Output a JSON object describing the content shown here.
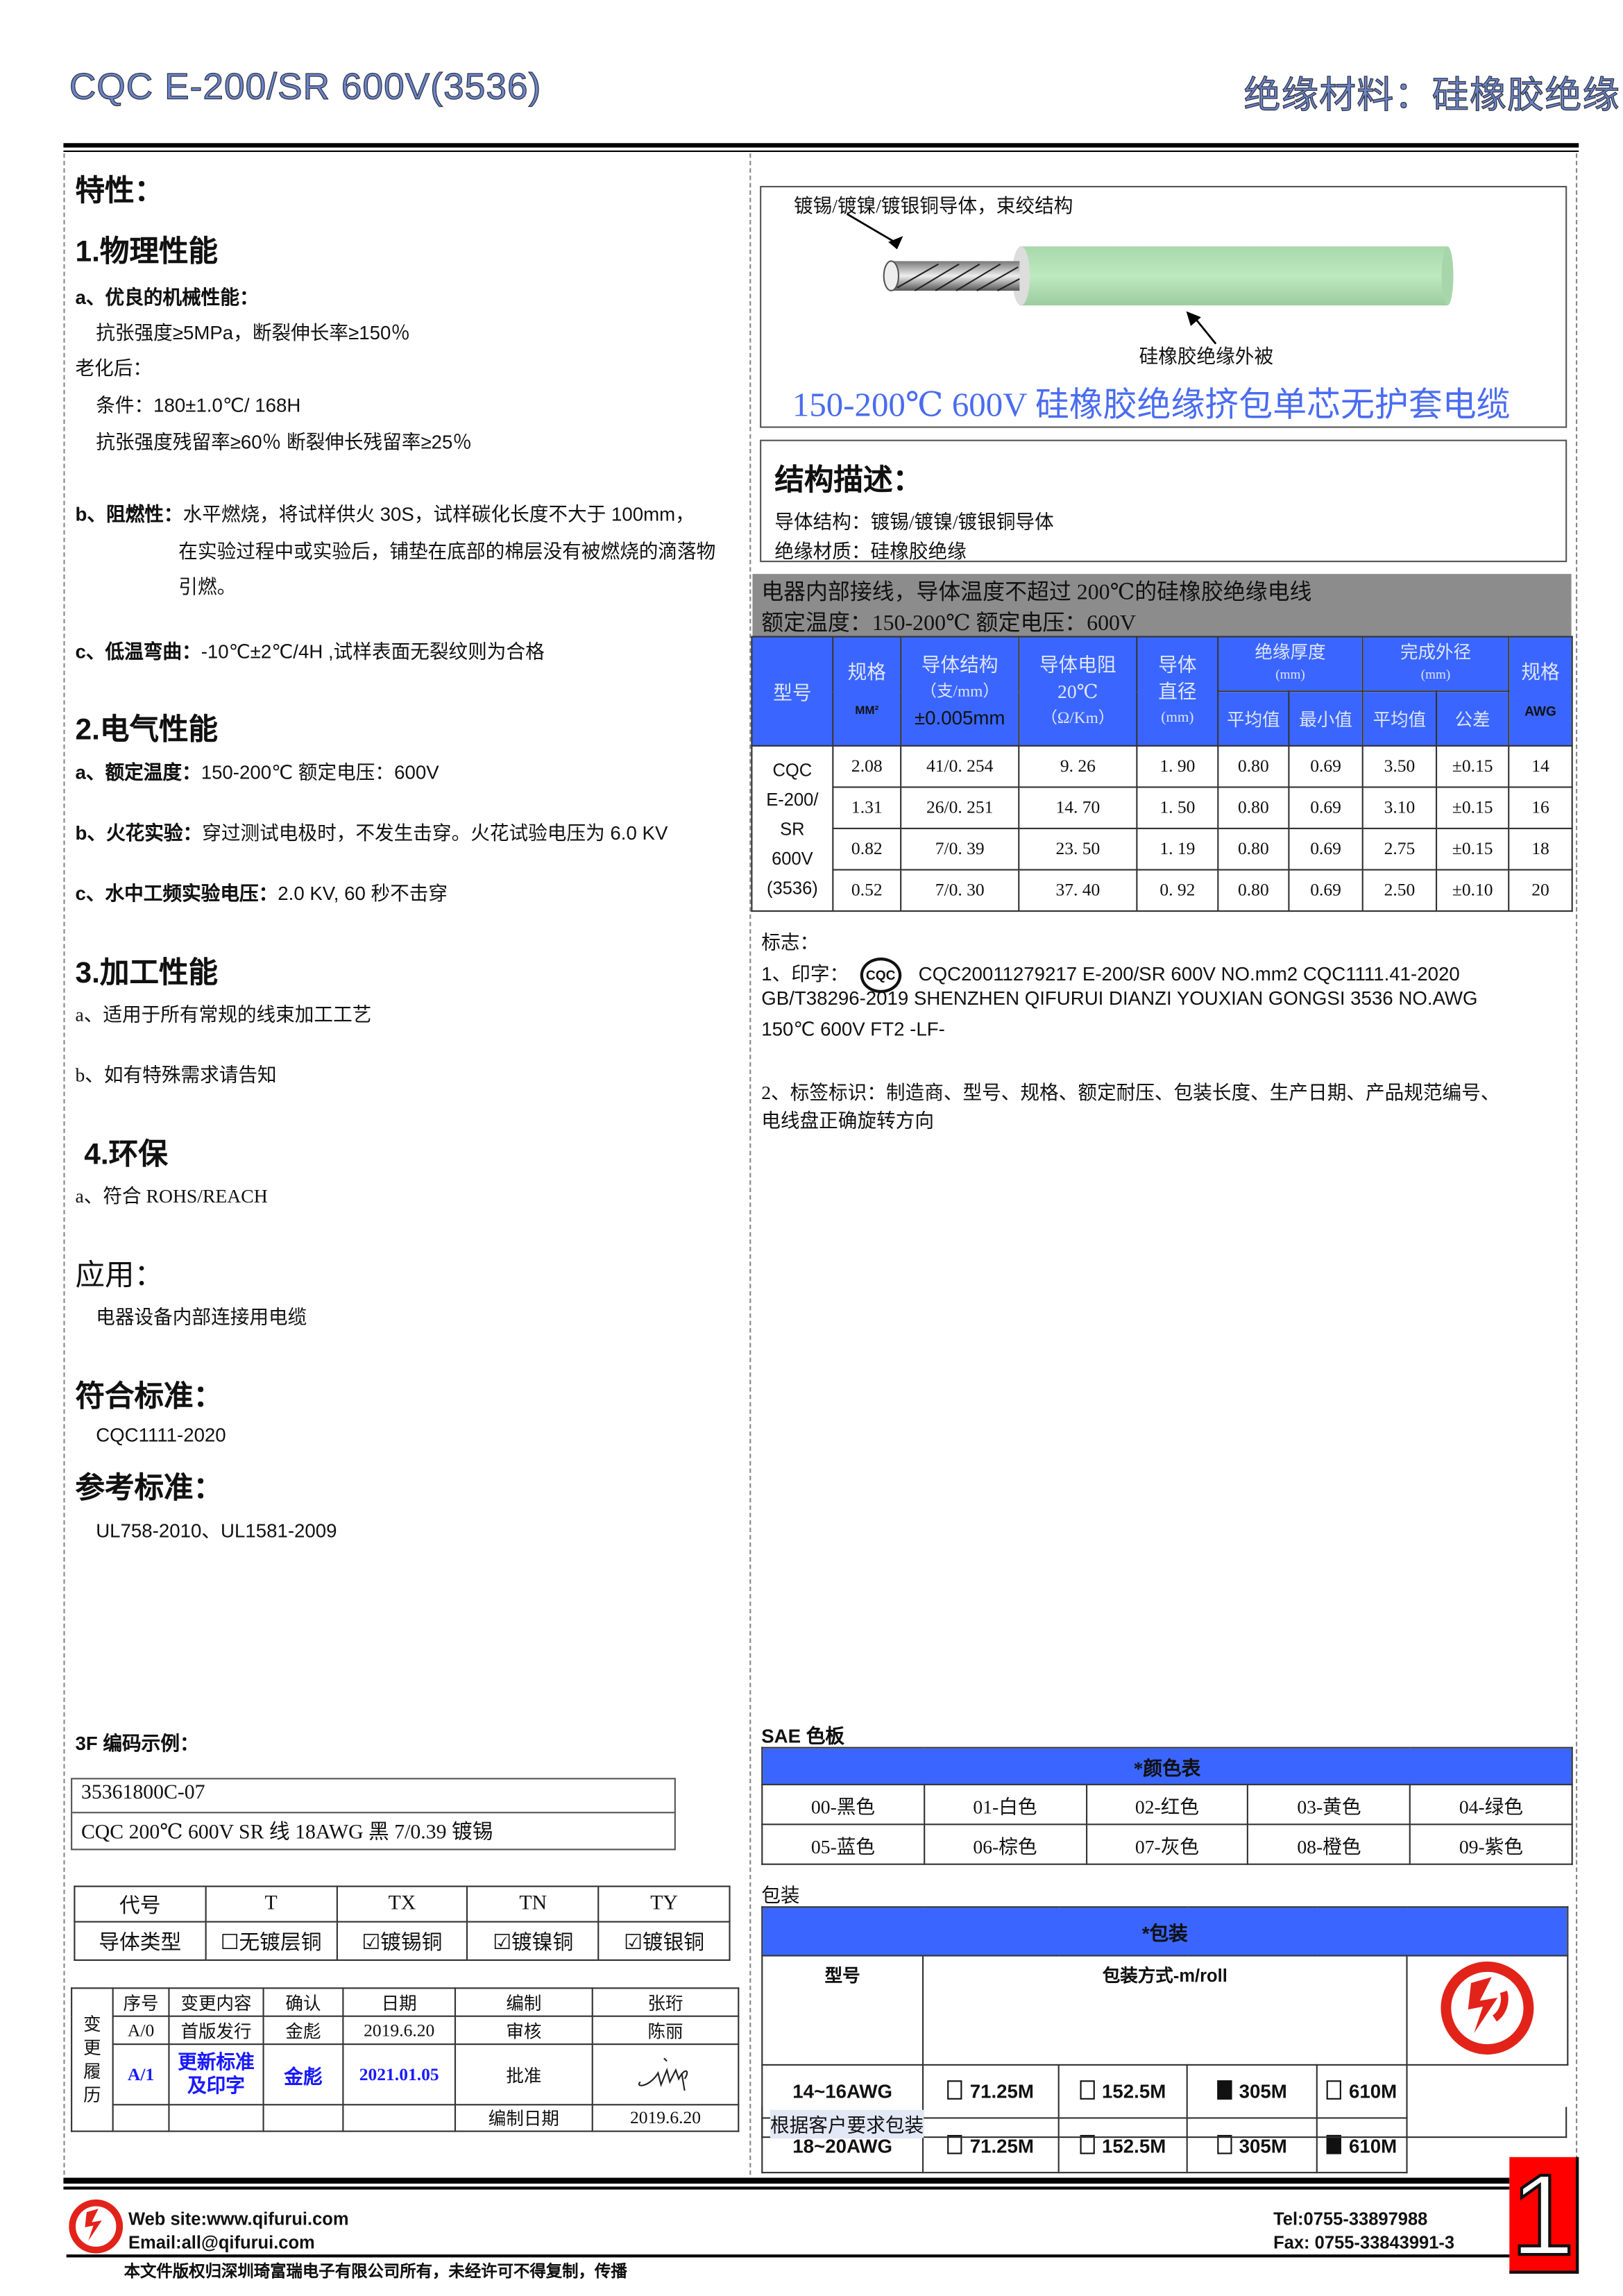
{
  "header": {
    "title": "CQC E-200/SR 600V(3536)",
    "category": "绝缘材料：硅橡胶绝缘"
  },
  "left": {
    "features_heading": "特性：",
    "physical": {
      "heading": "1.物理性能",
      "a_label": "a、优良的机械性能：",
      "a_line1": "抗张强度≥5MPa，断裂伸长率≥150％",
      "aging_label": "老化后：",
      "aging_cond": "条件：180±1.0℃/ 168H",
      "aging_result": "抗张强度残留率≥60％  断裂伸长残留率≥25％",
      "b_label": "b、阻燃性：",
      "b_line1": "水平燃烧，将试样供火 30S，试样碳化长度不大于 100mm，",
      "b_line2": "在实验过程中或实验后，铺垫在底部的棉层没有被燃烧的滴落物",
      "b_line3": "引燃。",
      "c_label": "c、低温弯曲：",
      "c_text": "-10℃±2℃/4H ,试样表面无裂纹则为合格"
    },
    "electrical": {
      "heading": "2.电气性能",
      "a_label": "a、额定温度：",
      "a_text": "150-200℃    额定电压：600V",
      "b_label": "b、火花实验：",
      "b_text": "穿过测试电极时，不发生击穿。火花试验电压为 6.0 KV",
      "c_label": "c、水中工频实验电压：",
      "c_text": "2.0 KV, 60 秒不击穿"
    },
    "processing": {
      "heading": "3.加工性能",
      "a": "a、适用于所有常规的线束加工工艺",
      "b": "b、如有特殊需求请告知"
    },
    "environment": {
      "heading": "4.环保",
      "a": "a、符合 ROHS/REACH"
    },
    "application": {
      "heading": "应用：",
      "text": "电器设备内部连接用电缆"
    },
    "standard": {
      "heading": "符合标准：",
      "text": "CQC1111-2020"
    },
    "reference": {
      "heading": "参考标准：",
      "text": "UL758-2010、UL1581-2009"
    },
    "code_example": {
      "heading": "3F 编码示例：",
      "code": "35361800C-07",
      "description": "CQC 200℃  600V SR 线  18AWG  黑  7/0.39 镀锡"
    },
    "code_table": {
      "header": [
        "代号",
        "T",
        "TX",
        "TN",
        "TY"
      ],
      "row": [
        "导体类型",
        "☐无镀层铜",
        "☑镀锡铜",
        "☑镀镍铜",
        "☑镀银铜"
      ]
    },
    "history": {
      "side_label": "变更履历",
      "header": [
        "序号",
        "变更内容",
        "确认",
        "日期",
        "编制",
        "张珩"
      ],
      "row1": [
        "A/0",
        "首版发行",
        "金彪",
        "2019.6.20",
        "审核",
        "陈丽"
      ],
      "row2": [
        "A/1",
        "更新标准及印字",
        "金彪",
        "2021.01.05",
        "批准"
      ],
      "row3": [
        "编制日期",
        "2019.6.20"
      ],
      "highlight_color": "#1a1aff"
    }
  },
  "right": {
    "image": {
      "conductor_label": "镀锡/镀镍/镀银铜导体，束绞结构",
      "insulation_label": "硅橡胶绝缘外被",
      "caption": "150-200℃  600V 硅橡胶绝缘挤包单芯无护套电缆",
      "insulation_color": "#b8e8bb"
    },
    "structure": {
      "heading": "结构描述：",
      "conductor": "导体结构：镀锡/镀镍/镀银铜导体",
      "insulation": "绝缘材质：硅橡胶绝缘"
    },
    "banner": {
      "line1": "电器内部接线，导体温度不超过 200℃的硅橡胶绝缘电线",
      "line2": "额定温度：150-200℃  额定电压：600V"
    },
    "spec_table": {
      "header": {
        "model": "型号",
        "size": "规格",
        "size_unit": "MM²",
        "structure": "导体结构",
        "structure_unit": "（支/mm）",
        "structure_tol": "±0.005mm",
        "resistance": "导体电阻",
        "resistance_temp": "20℃",
        "resistance_unit": "（Ω/Km）",
        "diameter": "导体",
        "diameter2": "直径",
        "diameter_unit": "(mm)",
        "ins_thickness": "绝缘厚度",
        "ins_unit": "(mm)",
        "avg": "平均值",
        "min": "最小值",
        "od": "完成外径",
        "od_unit": "(mm)",
        "od_avg": "平均值",
        "tol": "公差",
        "awg": "规格",
        "awg_unit": "AWG"
      },
      "model": [
        "CQC",
        "E-200/",
        "SR",
        "600V",
        "(3536)"
      ],
      "rows": [
        [
          "2.08",
          "41/0. 254",
          "9. 26",
          "1. 90",
          "0.80",
          "0.69",
          "3.50",
          "±0.15",
          "14"
        ],
        [
          "1.31",
          "26/0. 251",
          "14. 70",
          "1. 50",
          "0.80",
          "0.69",
          "3.10",
          "±0.15",
          "16"
        ],
        [
          "0.82",
          "7/0. 39",
          "23. 50",
          "1. 19",
          "0.80",
          "0.69",
          "2.75",
          "±0.15",
          "18"
        ],
        [
          "0.52",
          "7/0. 30",
          "37. 40",
          "0. 92",
          "0.80",
          "0.69",
          "2.50",
          "±0.10",
          "20"
        ]
      ]
    },
    "marking": {
      "heading": "标志：",
      "l1_prefix": "1、印字：",
      "cqc_logo": "CQC",
      "l1": "CQC20011279217    E-200/SR    600V    NO.mm2    CQC1111.41-2020",
      "l2": "GB/T38296-2019 SHENZHEN QIFURUI DIANZI YOUXIAN GONGSI      3536 NO.AWG",
      "l3": "150℃  600V FT2 -LF-",
      "l4": "2、标签标识：制造商、型号、规格、额定耐压、包装长度、生产日期、产品规范编号、",
      "l5": "电线盘正确旋转方向"
    },
    "sae": {
      "heading": "SAE 色板",
      "title": "*颜色表",
      "colors": [
        [
          "00-黑色",
          "01-白色",
          "02-红色",
          "03-黄色",
          "04-绿色"
        ],
        [
          "05-蓝色",
          "06-棕色",
          "07-灰色",
          "08-橙色",
          "09-紫色"
        ]
      ]
    },
    "packing": {
      "heading": "包装",
      "title": "*包装",
      "model_header": "型号",
      "method_header": "包装方式-m/roll",
      "rows": [
        {
          "model": "14~16AWG",
          "options": [
            {
              "label": "71.25M",
              "checked": false
            },
            {
              "label": "152.5M",
              "checked": false
            },
            {
              "label": "305M",
              "checked": true
            },
            {
              "label": "610M",
              "checked": false
            }
          ]
        },
        {
          "model": "18~20AWG",
          "options": [
            {
              "label": "71.25M",
              "checked": false
            },
            {
              "label": "152.5M",
              "checked": false
            },
            {
              "label": "305M",
              "checked": false
            },
            {
              "label": "610M",
              "checked": true
            }
          ]
        }
      ],
      "note": "根据客户要求包装"
    }
  },
  "footer": {
    "website": "Web site:www.qifurui.com",
    "email": "Email:all@qifurui.com",
    "tel": "Tel:0755-33897988",
    "fax": "Fax: 0755-33843991-3",
    "copyright": "本文件版权归深圳琦富瑞电子有限公司所有，未经许可不得复制，传播",
    "page_number": "1",
    "brand_color": "#e2231a"
  },
  "colors": {
    "table_header_blue": "#3a66ff",
    "banner_gray": "#8c8c8c",
    "caption_blue": "#4a6cf0"
  }
}
